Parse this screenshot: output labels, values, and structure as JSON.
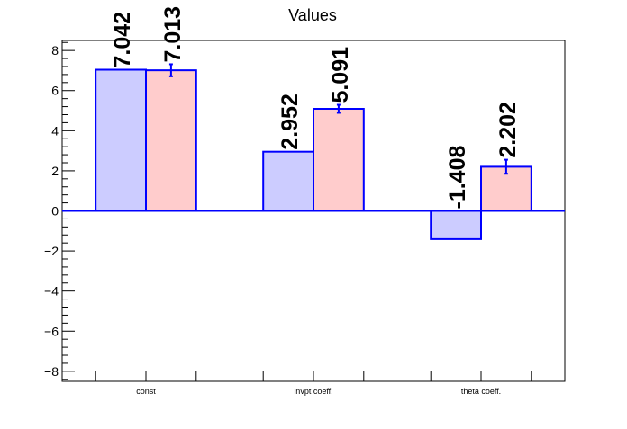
{
  "chart_data": {
    "type": "bar",
    "title": "Values",
    "categories": [
      "const",
      "invpt coeff.",
      "theta coeff."
    ],
    "series": [
      {
        "values": [
          7.042,
          2.952,
          -1.408
        ],
        "errors": [
          0,
          0,
          0
        ],
        "color": "#ccccff"
      },
      {
        "values": [
          7.013,
          5.091,
          2.202
        ],
        "errors": [
          0.3,
          0.2,
          0.35
        ],
        "color": "#ffcccc"
      }
    ],
    "value_labels": [
      [
        "7.042",
        "2.952",
        "-1.408"
      ],
      [
        "7.013",
        "5.091",
        "2.202"
      ]
    ],
    "edge_color": "#0000ff",
    "ylim": [
      -8.5,
      8.5
    ],
    "yticks": [
      -8,
      -6,
      -4,
      -2,
      0,
      2,
      4,
      6,
      8
    ],
    "ytick_labels": [
      "−8",
      "−6",
      "−4",
      "−2",
      "0",
      "2",
      "4",
      "6",
      "8"
    ],
    "xlabel": "",
    "ylabel": "",
    "grid": false,
    "legend": "none"
  }
}
